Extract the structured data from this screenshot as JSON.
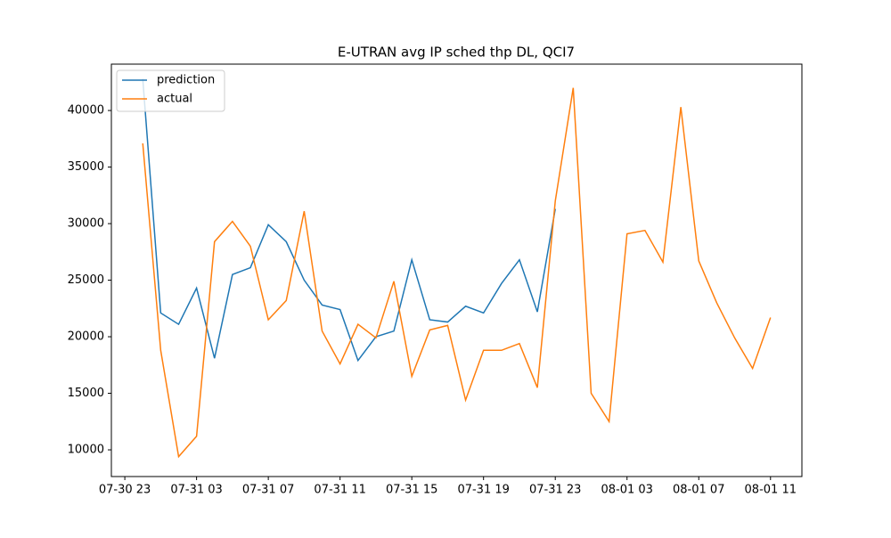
{
  "chart_data": {
    "type": "line",
    "title": "E-UTRAN avg IP sched thp DL, QCI7",
    "x": [
      "07-31 00",
      "07-31 01",
      "07-31 02",
      "07-31 03",
      "07-31 04",
      "07-31 05",
      "07-31 06",
      "07-31 07",
      "07-31 08",
      "07-31 09",
      "07-31 10",
      "07-31 11",
      "07-31 12",
      "07-31 13",
      "07-31 14",
      "07-31 15",
      "07-31 16",
      "07-31 17",
      "07-31 18",
      "07-31 19",
      "07-31 20",
      "07-31 21",
      "07-31 22",
      "07-31 23",
      "08-01 00",
      "08-01 01",
      "08-01 02",
      "08-01 03",
      "08-01 04",
      "08-01 05",
      "08-01 06",
      "08-01 07",
      "08-01 08",
      "08-01 09",
      "08-01 10",
      "08-01 11"
    ],
    "series": [
      {
        "name": "prediction",
        "color": "#1f77b4",
        "values": [
          42800,
          22100,
          21100,
          24300,
          18100,
          25500,
          26100,
          29900,
          28400,
          25000,
          22800,
          22400,
          17900,
          20000,
          20500,
          26800,
          21500,
          21300,
          22700,
          22100,
          24700,
          26800,
          22200,
          31300,
          null,
          null,
          null,
          null,
          null,
          null,
          null,
          null,
          null,
          null,
          null,
          null
        ]
      },
      {
        "name": "actual",
        "color": "#ff7f0e",
        "values": [
          37100,
          18800,
          9400,
          11200,
          28400,
          30200,
          28000,
          21500,
          23200,
          31100,
          20500,
          17600,
          21100,
          19900,
          24900,
          16500,
          20600,
          21000,
          14400,
          18800,
          18800,
          19400,
          15500,
          32000,
          42000,
          15000,
          12500,
          29100,
          29400,
          26600,
          40300,
          26700,
          23000,
          19900,
          17200,
          21700
        ]
      }
    ],
    "xticks": [
      "07-30 23",
      "07-31 03",
      "07-31 07",
      "07-31 11",
      "07-31 15",
      "07-31 19",
      "07-31 23",
      "08-01 03",
      "08-01 07",
      "08-01 11"
    ],
    "ylim": [
      7640,
      44100
    ],
    "yticks": [
      10000,
      15000,
      20000,
      25000,
      30000,
      35000,
      40000
    ],
    "legend": "upper left"
  }
}
